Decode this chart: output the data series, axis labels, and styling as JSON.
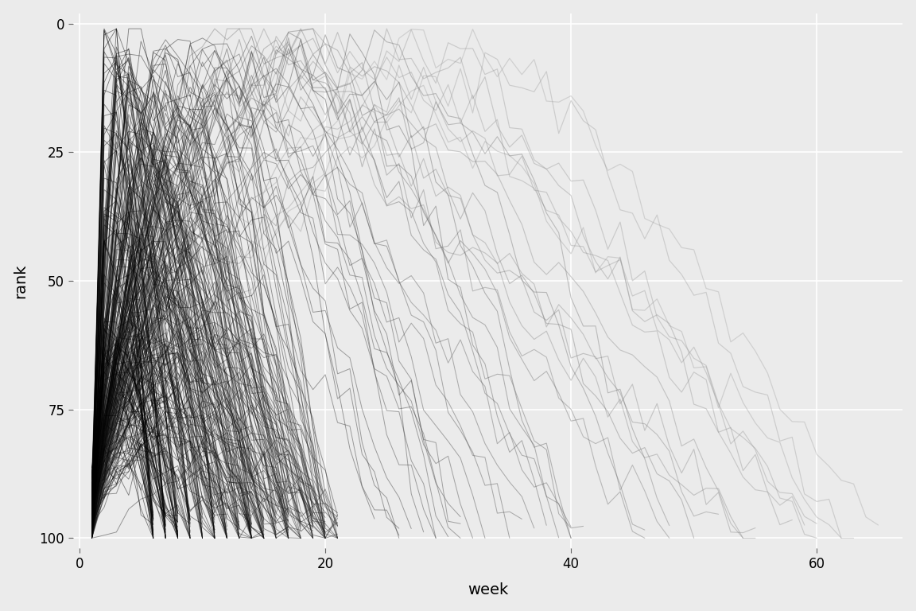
{
  "title": "",
  "xlabel": "week",
  "ylabel": "rank",
  "xlim": [
    -0.5,
    67
  ],
  "ylim": [
    102,
    -2
  ],
  "xticks": [
    0,
    20,
    40,
    60
  ],
  "yticks": [
    0,
    25,
    50,
    75,
    100
  ],
  "bg_color": "#EBEBEB",
  "grid_color": "white",
  "n_short_songs": 300,
  "n_long_songs": 25,
  "seed": 42
}
